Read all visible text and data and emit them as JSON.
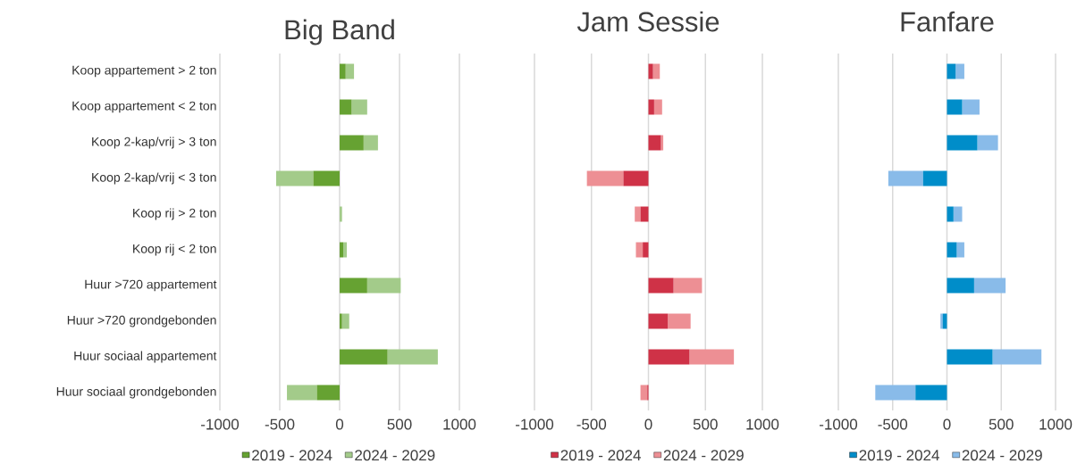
{
  "chart_data": [
    {
      "type": "bar",
      "title": "Big Band",
      "orientation": "horizontal",
      "stacked": true,
      "grid": "x",
      "legend": "bottom",
      "categories": [
        "Koop appartement > 2 ton",
        "Koop appartement < 2 ton",
        "Koop 2-kap/vrij > 3 ton",
        "Koop 2-kap/vrij < 3 ton",
        "Koop rij > 2 ton",
        "Koop rij < 2 ton",
        "Huur >720 appartement",
        "Huur >720 grondgebonden",
        "Huur sociaal appartement",
        "Huur sociaal grondgebonden"
      ],
      "xlim": [
        -1000,
        1000
      ],
      "xticks": [
        -1000,
        -500,
        0,
        500,
        1000
      ],
      "series": [
        {
          "name": "2019 - 2024",
          "color": "#66a232",
          "values": [
            50,
            100,
            200,
            -220,
            0,
            30,
            230,
            20,
            400,
            -190
          ]
        },
        {
          "name": "2024 - 2029",
          "color": "#a3cb8a",
          "values": [
            70,
            130,
            120,
            -310,
            20,
            30,
            280,
            60,
            420,
            -250
          ]
        }
      ]
    },
    {
      "type": "bar",
      "title": "Jam Sessie",
      "orientation": "horizontal",
      "stacked": true,
      "grid": "x",
      "legend": "bottom",
      "tick_labels": "x",
      "categories": [
        null,
        null,
        null,
        null,
        null,
        null,
        null,
        null,
        null,
        null
      ],
      "xlim": [
        -1000,
        1000
      ],
      "xticks": [
        -1000,
        -500,
        0,
        500,
        1000
      ],
      "series": [
        {
          "name": "2019 - 2024",
          "color": "#cf3247",
          "values": [
            40,
            50,
            110,
            -220,
            -70,
            -50,
            220,
            170,
            360,
            -10
          ]
        },
        {
          "name": "2024 - 2029",
          "color": "#ed8f94",
          "values": [
            60,
            70,
            20,
            -320,
            -50,
            -60,
            250,
            200,
            390,
            -60
          ]
        }
      ]
    },
    {
      "type": "bar",
      "title": "Fanfare",
      "orientation": "horizontal",
      "stacked": true,
      "grid": "x",
      "legend": "bottom",
      "tick_labels": "x",
      "categories": [
        null,
        null,
        null,
        null,
        null,
        null,
        null,
        null,
        null,
        null
      ],
      "xlim": [
        -1000,
        1000
      ],
      "xticks": [
        -1000,
        -500,
        0,
        500,
        1000
      ],
      "series": [
        {
          "name": "2019 - 2024",
          "color": "#008dc9",
          "values": [
            80,
            140,
            280,
            -220,
            60,
            90,
            250,
            -40,
            420,
            -290
          ]
        },
        {
          "name": "2024 - 2029",
          "color": "#89bbe9",
          "values": [
            80,
            160,
            190,
            -320,
            80,
            70,
            290,
            -20,
            450,
            -370
          ]
        }
      ]
    }
  ]
}
